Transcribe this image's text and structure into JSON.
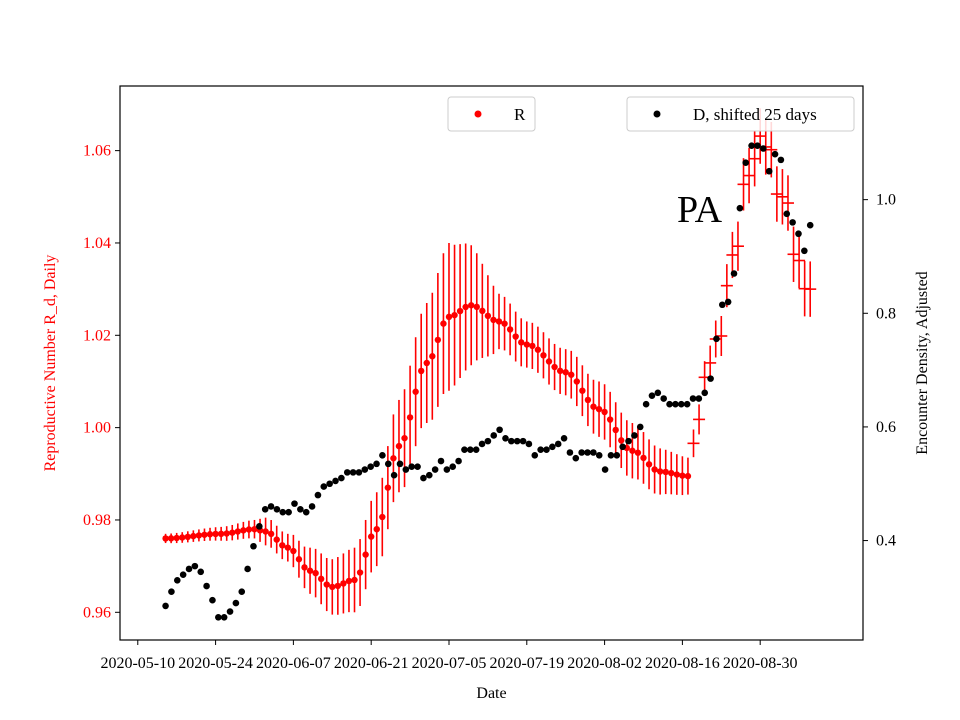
{
  "chart_data": {
    "type": "scatter",
    "xlabel": "Date",
    "x_ticks": [
      "2020-05-10",
      "2020-05-24",
      "2020-06-07",
      "2020-06-21",
      "2020-07-05",
      "2020-07-19",
      "2020-08-02",
      "2020-08-16",
      "2020-08-30"
    ],
    "left_axis": {
      "label": "Reproductive Number R_d, Daily",
      "color": "#ff0000",
      "ylim": [
        0.954,
        1.074
      ],
      "ticks": [
        "0.96",
        "0.98",
        "1.00",
        "1.02",
        "1.04",
        "1.06"
      ]
    },
    "right_axis": {
      "label": "Encounter Density, Adjusted",
      "color": "#000000",
      "ylim": [
        0.225,
        1.2
      ],
      "ticks": [
        "0.4",
        "0.6",
        "0.8",
        "1.0"
      ]
    },
    "annotation": "PA",
    "legend": {
      "R": "R",
      "D": "D, shifted 25 days"
    },
    "series": [
      {
        "name": "R",
        "axis": "left",
        "color": "#ff0000",
        "x_range": [
          "2020-05-15",
          "2020-08-17"
        ],
        "anchors": [
          {
            "date": "2020-05-15",
            "y": 0.976,
            "err": 0.001
          },
          {
            "date": "2020-05-25",
            "y": 0.977,
            "err": 0.0015
          },
          {
            "date": "2020-05-31",
            "y": 0.978,
            "err": 0.002
          },
          {
            "date": "2020-06-02",
            "y": 0.9775,
            "err": 0.003
          },
          {
            "date": "2020-06-06",
            "y": 0.974,
            "err": 0.003
          },
          {
            "date": "2020-06-10",
            "y": 0.969,
            "err": 0.005
          },
          {
            "date": "2020-06-14",
            "y": 0.9655,
            "err": 0.006
          },
          {
            "date": "2020-06-18",
            "y": 0.967,
            "err": 0.007
          },
          {
            "date": "2020-06-22",
            "y": 0.978,
            "err": 0.008
          },
          {
            "date": "2020-06-26",
            "y": 0.996,
            "err": 0.01
          },
          {
            "date": "2020-07-01",
            "y": 1.014,
            "err": 0.013
          },
          {
            "date": "2020-07-05",
            "y": 1.024,
            "err": 0.016
          },
          {
            "date": "2020-07-09",
            "y": 1.0265,
            "err": 0.013
          },
          {
            "date": "2020-07-14",
            "y": 1.023,
            "err": 0.006
          },
          {
            "date": "2020-07-19",
            "y": 1.018,
            "err": 0.005
          },
          {
            "date": "2020-07-26",
            "y": 1.012,
            "err": 0.005
          },
          {
            "date": "2020-08-01",
            "y": 1.004,
            "err": 0.006
          },
          {
            "date": "2020-08-07",
            "y": 0.995,
            "err": 0.006
          },
          {
            "date": "2020-08-12",
            "y": 0.9905,
            "err": 0.005
          },
          {
            "date": "2020-08-17",
            "y": 0.9895,
            "err": 0.004
          }
        ]
      },
      {
        "name": "R_tail",
        "axis": "left",
        "color": "#ff0000",
        "x_range": [
          "2020-08-18",
          "2020-09-08"
        ],
        "anchors": [
          {
            "date": "2020-08-18",
            "y": 0.999,
            "err": 0.003
          },
          {
            "date": "2020-08-22",
            "y": 1.018,
            "err": 0.004
          },
          {
            "date": "2020-08-25",
            "y": 1.035,
            "err": 0.005
          },
          {
            "date": "2020-08-28",
            "y": 1.057,
            "err": 0.006
          },
          {
            "date": "2020-08-31",
            "y": 1.062,
            "err": 0.006
          },
          {
            "date": "2020-09-03",
            "y": 1.05,
            "err": 0.006
          },
          {
            "date": "2020-09-06",
            "y": 1.035,
            "err": 0.006
          },
          {
            "date": "2020-09-08",
            "y": 1.03,
            "err": 0.006
          }
        ]
      },
      {
        "name": "D, shifted 25 days",
        "axis": "right",
        "color": "#000000",
        "x_start": "2020-05-15",
        "values": [
          0.285,
          0.31,
          0.33,
          0.34,
          0.35,
          0.355,
          0.345,
          0.32,
          0.295,
          0.265,
          0.265,
          0.275,
          0.29,
          0.31,
          0.35,
          0.39,
          0.425,
          0.455,
          0.46,
          0.455,
          0.45,
          0.45,
          0.465,
          0.455,
          0.45,
          0.46,
          0.48,
          0.495,
          0.5,
          0.505,
          0.51,
          0.52,
          0.52,
          0.52,
          0.525,
          0.53,
          0.535,
          0.55,
          0.535,
          0.515,
          0.535,
          0.525,
          0.53,
          0.53,
          0.51,
          0.515,
          0.525,
          0.54,
          0.525,
          0.53,
          0.54,
          0.56,
          0.56,
          0.56,
          0.57,
          0.575,
          0.585,
          0.595,
          0.58,
          0.575,
          0.575,
          0.575,
          0.57,
          0.55,
          0.56,
          0.56,
          0.565,
          0.57,
          0.58,
          0.555,
          0.545,
          0.555,
          0.555,
          0.555,
          0.55,
          0.525,
          0.55,
          0.55,
          0.565,
          0.575,
          0.585,
          0.6,
          0.64,
          0.655,
          0.66,
          0.65,
          0.64,
          0.64,
          0.64,
          0.64,
          0.65,
          0.65,
          0.66,
          0.685,
          0.755,
          0.815,
          0.82,
          0.87,
          0.985,
          1.065,
          1.095,
          1.095,
          1.09,
          1.05,
          1.08,
          1.07,
          0.975,
          0.96,
          0.94,
          0.91,
          0.955
        ],
        "x_end": "2020-09-08"
      }
    ]
  }
}
